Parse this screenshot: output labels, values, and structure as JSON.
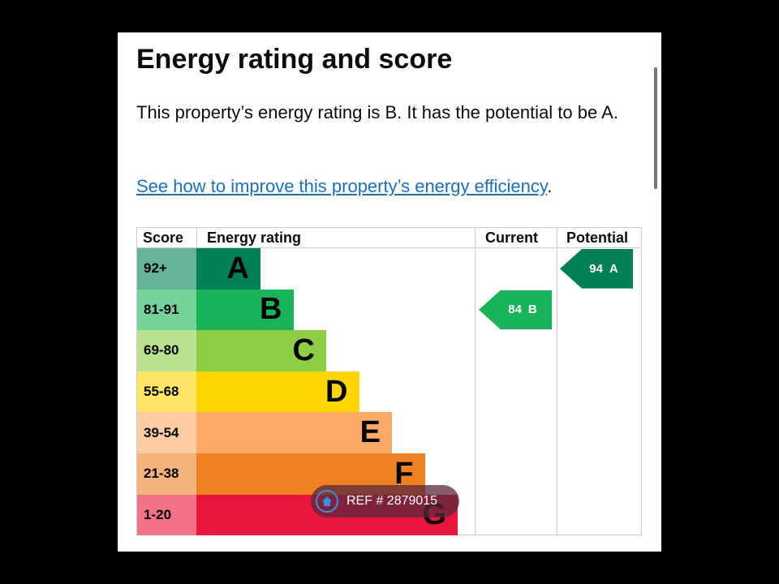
{
  "heading": "Energy rating and score",
  "summary": "This property’s energy rating is B. It has the potential to be A.",
  "link": "See how to improve this property’s energy efficiency",
  "link_suffix": ".",
  "table": {
    "headers": [
      "Score",
      "Energy rating",
      "Current",
      "Potential"
    ],
    "rows": [
      {
        "range": "92+",
        "band": "A",
        "color": "#008054"
      },
      {
        "range": "81-91",
        "band": "B",
        "color": "#19b459"
      },
      {
        "range": "69-80",
        "band": "C",
        "color": "#8dce46"
      },
      {
        "range": "55-68",
        "band": "D",
        "color": "#ffd500"
      },
      {
        "range": "39-54",
        "band": "E",
        "color": "#fcaa65"
      },
      {
        "range": "21-38",
        "band": "F",
        "color": "#ef8023"
      },
      {
        "range": "1-20",
        "band": "G",
        "color": "#e9153b"
      }
    ],
    "current": {
      "score": 84,
      "band": "B"
    },
    "potential": {
      "score": 94,
      "band": "A"
    }
  },
  "watermark": "REF # 2879015"
}
